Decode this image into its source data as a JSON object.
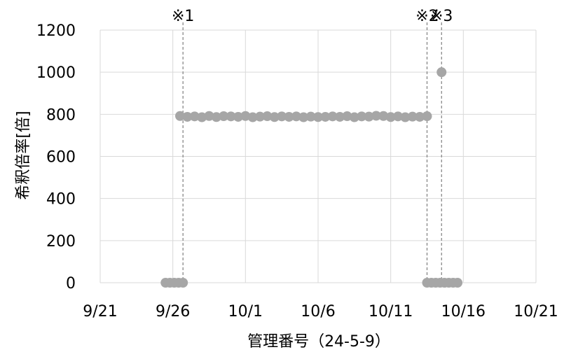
{
  "chart_data": {
    "type": "scatter",
    "title": "",
    "xlabel": "管理番号（24-5-9）",
    "ylabel": "希釈倍率[倍]",
    "xlim": [
      "9/21",
      "10/21"
    ],
    "ylim": [
      0,
      1200
    ],
    "grid": true,
    "x_ticks": [
      "9/21",
      "9/26",
      "10/1",
      "10/6",
      "10/11",
      "10/16",
      "10/21"
    ],
    "y_ticks": [
      "0",
      "200",
      "400",
      "600",
      "800",
      "1000",
      "1200"
    ],
    "series_color": "#a6a6a6",
    "annotations": [
      {
        "label": "※1",
        "date": "9/26.7"
      },
      {
        "label": "※2",
        "date": "10/13.5"
      },
      {
        "label": "※3",
        "date": "10/14.5"
      }
    ],
    "points": [
      {
        "x": "9/25.5",
        "y": 0
      },
      {
        "x": "9/25.8",
        "y": 0
      },
      {
        "x": "9/26.1",
        "y": 0
      },
      {
        "x": "9/26.4",
        "y": 0
      },
      {
        "x": "9/26.7",
        "y": 0
      },
      {
        "x": "9/26.5",
        "y": 792
      },
      {
        "x": "9/27.0",
        "y": 788
      },
      {
        "x": "9/27.5",
        "y": 790
      },
      {
        "x": "9/28.0",
        "y": 786
      },
      {
        "x": "9/28.5",
        "y": 792
      },
      {
        "x": "9/29.0",
        "y": 787
      },
      {
        "x": "9/29.5",
        "y": 791
      },
      {
        "x": "9/30.0",
        "y": 790
      },
      {
        "x": "9/30.5",
        "y": 788
      },
      {
        "x": "10/1.0",
        "y": 792
      },
      {
        "x": "10/1.5",
        "y": 786
      },
      {
        "x": "10/2.0",
        "y": 789
      },
      {
        "x": "10/2.5",
        "y": 791
      },
      {
        "x": "10/3.0",
        "y": 787
      },
      {
        "x": "10/3.5",
        "y": 790
      },
      {
        "x": "10/4.0",
        "y": 788
      },
      {
        "x": "10/4.5",
        "y": 790
      },
      {
        "x": "10/5.0",
        "y": 786
      },
      {
        "x": "10/5.5",
        "y": 789
      },
      {
        "x": "10/6.0",
        "y": 787
      },
      {
        "x": "10/6.5",
        "y": 788
      },
      {
        "x": "10/7.0",
        "y": 790
      },
      {
        "x": "10/7.5",
        "y": 788
      },
      {
        "x": "10/8.0",
        "y": 791
      },
      {
        "x": "10/8.5",
        "y": 786
      },
      {
        "x": "10/9.0",
        "y": 790
      },
      {
        "x": "10/9.5",
        "y": 789
      },
      {
        "x": "10/10.0",
        "y": 793
      },
      {
        "x": "10/10.5",
        "y": 792
      },
      {
        "x": "10/11.0",
        "y": 787
      },
      {
        "x": "10/11.5",
        "y": 790
      },
      {
        "x": "10/12.0",
        "y": 786
      },
      {
        "x": "10/12.5",
        "y": 789
      },
      {
        "x": "10/13.0",
        "y": 788
      },
      {
        "x": "10/13.5",
        "y": 791
      },
      {
        "x": "10/14.5",
        "y": 1000
      },
      {
        "x": "10/13.5",
        "y": 0
      },
      {
        "x": "10/13.8",
        "y": 0
      },
      {
        "x": "10/14.1",
        "y": 0
      },
      {
        "x": "10/14.4",
        "y": 0
      },
      {
        "x": "10/14.7",
        "y": 0
      },
      {
        "x": "10/15.0",
        "y": 0
      },
      {
        "x": "10/15.3",
        "y": 0
      },
      {
        "x": "10/15.6",
        "y": 0
      }
    ]
  }
}
